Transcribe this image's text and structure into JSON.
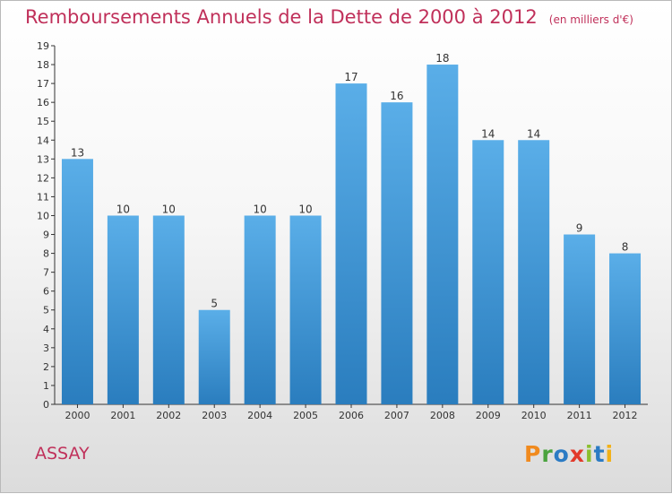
{
  "header": {
    "title": "Remboursements Annuels de la Dette de 2000 à 2012",
    "unit": "(en milliers d'€)"
  },
  "footer": {
    "commune": "ASSAY",
    "logo_text": "Proxiti"
  },
  "colors": {
    "title": "#c0305a",
    "bar_top": "#5aaee8",
    "bar_bottom": "#2a7dbe",
    "axis": "#333333"
  },
  "chart_data": {
    "type": "bar",
    "categories": [
      "2000",
      "2001",
      "2002",
      "2003",
      "2004",
      "2005",
      "2006",
      "2007",
      "2008",
      "2009",
      "2010",
      "2011",
      "2012"
    ],
    "values": [
      13,
      10,
      10,
      5,
      10,
      10,
      17,
      16,
      18,
      14,
      14,
      9,
      8
    ],
    "ylim": [
      0,
      19
    ],
    "yticks": [
      0,
      1,
      2,
      3,
      4,
      5,
      6,
      7,
      8,
      9,
      10,
      11,
      12,
      13,
      14,
      15,
      16,
      17,
      18,
      19
    ],
    "grid": false,
    "legend": "none",
    "title": "Remboursements Annuels de la Dette de 2000 à 2012",
    "xlabel": "",
    "ylabel": ""
  }
}
